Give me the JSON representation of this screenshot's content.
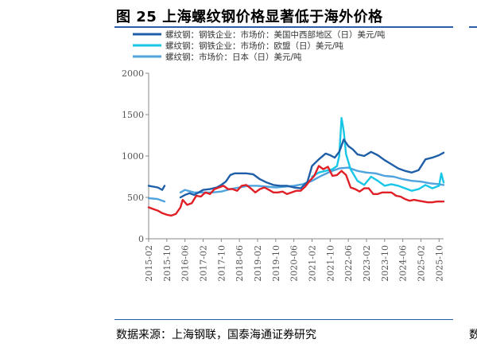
{
  "title": "图 25 上海螺纹钢价格显著低于海外价格",
  "source": "数据来源：上海钢联，国泰海通证券研究",
  "edge_fragment": "数",
  "chart_data": {
    "type": "line",
    "ylim": [
      0,
      2000
    ],
    "y_ticks": [
      0,
      500,
      1000,
      1500,
      2000
    ],
    "x_tick_labels": [
      "2015-02",
      "2015-10",
      "2016-06",
      "2017-02",
      "2017-10",
      "2018-06",
      "2019-02",
      "2019-10",
      "2020-06",
      "2021-02",
      "2021-10",
      "2022-06",
      "2023-02",
      "2023-10",
      "2024-06",
      "2025-02",
      "2025-10"
    ],
    "x_range": [
      "2015-02",
      "2025-12"
    ],
    "legend_position": "top",
    "series": [
      {
        "name": "螺纹钢：钢铁企业：市场价：美国中西部地区（日）美元/吨",
        "color": "#1f5fa8",
        "points": [
          [
            "2015-02",
            640
          ],
          [
            "2015-04",
            630
          ],
          [
            "2015-06",
            620
          ],
          [
            "2015-08",
            590
          ],
          [
            "2015-09",
            640
          ],
          [
            "2015-11",
            null
          ],
          [
            "2016-03",
            null
          ],
          [
            "2016-04",
            500
          ],
          [
            "2016-06",
            530
          ],
          [
            "2016-08",
            550
          ],
          [
            "2016-10",
            530
          ],
          [
            "2016-12",
            560
          ],
          [
            "2017-02",
            590
          ],
          [
            "2017-05",
            600
          ],
          [
            "2017-08",
            620
          ],
          [
            "2017-10",
            650
          ],
          [
            "2017-12",
            690
          ],
          [
            "2018-02",
            770
          ],
          [
            "2018-04",
            790
          ],
          [
            "2018-06",
            790
          ],
          [
            "2018-09",
            790
          ],
          [
            "2018-12",
            780
          ],
          [
            "2019-03",
            720
          ],
          [
            "2019-06",
            680
          ],
          [
            "2019-09",
            650
          ],
          [
            "2019-12",
            640
          ],
          [
            "2020-03",
            640
          ],
          [
            "2020-06",
            620
          ],
          [
            "2020-09",
            610
          ],
          [
            "2020-12",
            690
          ],
          [
            "2021-02",
            880
          ],
          [
            "2021-05",
            960
          ],
          [
            "2021-08",
            1030
          ],
          [
            "2021-10",
            1010
          ],
          [
            "2021-12",
            980
          ],
          [
            "2022-02",
            1050
          ],
          [
            "2022-04",
            1200
          ],
          [
            "2022-06",
            1120
          ],
          [
            "2022-08",
            1080
          ],
          [
            "2022-10",
            1020
          ],
          [
            "2023-01",
            1000
          ],
          [
            "2023-04",
            1050
          ],
          [
            "2023-07",
            1010
          ],
          [
            "2023-10",
            950
          ],
          [
            "2024-01",
            900
          ],
          [
            "2024-04",
            850
          ],
          [
            "2024-07",
            820
          ],
          [
            "2024-10",
            800
          ],
          [
            "2025-01",
            830
          ],
          [
            "2025-04",
            960
          ],
          [
            "2025-07",
            980
          ],
          [
            "2025-10",
            1010
          ],
          [
            "2025-12",
            1040
          ]
        ]
      },
      {
        "name": "螺纹钢：钢铁企业：市场价：欧盟（日）美元/吨",
        "color": "#18c6e8",
        "points": [
          [
            "2021-01",
            null
          ],
          [
            "2021-02",
            750
          ],
          [
            "2021-05",
            800
          ],
          [
            "2021-08",
            820
          ],
          [
            "2021-11",
            840
          ],
          [
            "2022-01",
            880
          ],
          [
            "2022-02",
            1000
          ],
          [
            "2022-03",
            1460
          ],
          [
            "2022-04",
            1300
          ],
          [
            "2022-05",
            1020
          ],
          [
            "2022-07",
            840
          ],
          [
            "2022-10",
            700
          ],
          [
            "2023-01",
            650
          ],
          [
            "2023-04",
            750
          ],
          [
            "2023-07",
            700
          ],
          [
            "2023-10",
            640
          ],
          [
            "2024-01",
            660
          ],
          [
            "2024-04",
            640
          ],
          [
            "2024-07",
            610
          ],
          [
            "2024-10",
            580
          ],
          [
            "2025-01",
            600
          ],
          [
            "2025-04",
            650
          ],
          [
            "2025-07",
            610
          ],
          [
            "2025-10",
            640
          ],
          [
            "2025-11",
            790
          ],
          [
            "2025-12",
            680
          ]
        ]
      },
      {
        "name": "螺纹钢：市场价：日本（日）美元/吨",
        "color": "#4fa3df",
        "points": [
          [
            "2015-02",
            490
          ],
          [
            "2015-06",
            480
          ],
          [
            "2015-09",
            450
          ],
          [
            "2015-11",
            null
          ],
          [
            "2016-03",
            null
          ],
          [
            "2016-04",
            560
          ],
          [
            "2016-06",
            590
          ],
          [
            "2016-10",
            560
          ],
          [
            "2017-02",
            560
          ],
          [
            "2017-06",
            560
          ],
          [
            "2017-10",
            570
          ],
          [
            "2018-02",
            600
          ],
          [
            "2018-06",
            620
          ],
          [
            "2018-10",
            640
          ],
          [
            "2019-02",
            640
          ],
          [
            "2019-06",
            630
          ],
          [
            "2019-10",
            620
          ],
          [
            "2020-02",
            630
          ],
          [
            "2020-06",
            640
          ],
          [
            "2020-10",
            660
          ],
          [
            "2021-02",
            700
          ],
          [
            "2021-06",
            760
          ],
          [
            "2021-10",
            810
          ],
          [
            "2022-02",
            850
          ],
          [
            "2022-06",
            860
          ],
          [
            "2022-10",
            820
          ],
          [
            "2023-02",
            800
          ],
          [
            "2023-06",
            790
          ],
          [
            "2023-10",
            760
          ],
          [
            "2024-02",
            750
          ],
          [
            "2024-06",
            720
          ],
          [
            "2024-10",
            700
          ],
          [
            "2025-02",
            690
          ],
          [
            "2025-06",
            670
          ],
          [
            "2025-10",
            660
          ],
          [
            "2025-12",
            650
          ]
        ]
      },
      {
        "name": "",
        "color": "#e01f26",
        "points": [
          [
            "2015-02",
            380
          ],
          [
            "2015-04",
            360
          ],
          [
            "2015-06",
            340
          ],
          [
            "2015-08",
            310
          ],
          [
            "2015-10",
            290
          ],
          [
            "2015-12",
            280
          ],
          [
            "2016-02",
            300
          ],
          [
            "2016-04",
            380
          ],
          [
            "2016-05",
            470
          ],
          [
            "2016-07",
            410
          ],
          [
            "2016-09",
            430
          ],
          [
            "2016-11",
            520
          ],
          [
            "2017-01",
            510
          ],
          [
            "2017-03",
            560
          ],
          [
            "2017-05",
            540
          ],
          [
            "2017-07",
            600
          ],
          [
            "2017-09",
            620
          ],
          [
            "2017-11",
            640
          ],
          [
            "2018-01",
            600
          ],
          [
            "2018-03",
            600
          ],
          [
            "2018-05",
            580
          ],
          [
            "2018-07",
            640
          ],
          [
            "2018-09",
            650
          ],
          [
            "2018-11",
            610
          ],
          [
            "2019-01",
            560
          ],
          [
            "2019-03",
            600
          ],
          [
            "2019-05",
            620
          ],
          [
            "2019-07",
            590
          ],
          [
            "2019-09",
            560
          ],
          [
            "2019-11",
            560
          ],
          [
            "2020-01",
            570
          ],
          [
            "2020-03",
            540
          ],
          [
            "2020-05",
            560
          ],
          [
            "2020-07",
            580
          ],
          [
            "2020-09",
            580
          ],
          [
            "2020-11",
            630
          ],
          [
            "2021-01",
            700
          ],
          [
            "2021-03",
            760
          ],
          [
            "2021-05",
            880
          ],
          [
            "2021-07",
            840
          ],
          [
            "2021-09",
            870
          ],
          [
            "2021-11",
            760
          ],
          [
            "2022-01",
            770
          ],
          [
            "2022-03",
            820
          ],
          [
            "2022-05",
            770
          ],
          [
            "2022-07",
            620
          ],
          [
            "2022-09",
            600
          ],
          [
            "2022-11",
            570
          ],
          [
            "2023-01",
            610
          ],
          [
            "2023-03",
            610
          ],
          [
            "2023-05",
            540
          ],
          [
            "2023-07",
            540
          ],
          [
            "2023-09",
            560
          ],
          [
            "2023-11",
            560
          ],
          [
            "2024-01",
            560
          ],
          [
            "2024-03",
            520
          ],
          [
            "2024-05",
            510
          ],
          [
            "2024-07",
            480
          ],
          [
            "2024-09",
            460
          ],
          [
            "2024-11",
            470
          ],
          [
            "2025-01",
            460
          ],
          [
            "2025-03",
            450
          ],
          [
            "2025-05",
            440
          ],
          [
            "2025-07",
            440
          ],
          [
            "2025-09",
            450
          ],
          [
            "2025-12",
            450
          ]
        ]
      }
    ]
  }
}
